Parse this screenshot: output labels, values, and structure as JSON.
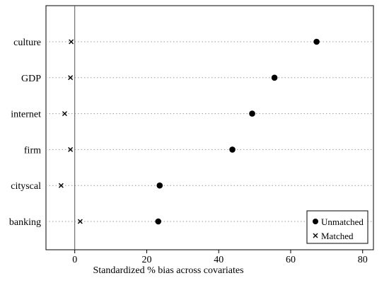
{
  "chart_data": {
    "type": "scatter",
    "xlabel": "Standardized % bias across covariates",
    "xlim": [
      -8,
      83
    ],
    "xticks": [
      0,
      20,
      40,
      60,
      80
    ],
    "categories": [
      "culture",
      "GDP",
      "internet",
      "firm",
      "cityscal",
      "banking"
    ],
    "series": [
      {
        "name": "Unmatched",
        "marker": "circle",
        "values": [
          67.2,
          55.5,
          49.3,
          43.8,
          23.6,
          23.2
        ]
      },
      {
        "name": "Matched",
        "marker": "cross",
        "values": [
          -1.0,
          -1.2,
          -2.8,
          -1.2,
          -3.8,
          1.5
        ]
      }
    ],
    "reference_line": 0,
    "grid": "dotted horizontal lines at each category",
    "legend_placement": "bottom-right"
  }
}
